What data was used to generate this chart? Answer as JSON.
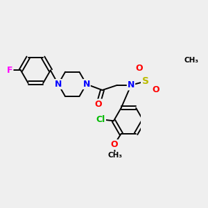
{
  "background_color": "#efefef",
  "bond_color": "#000000",
  "bond_width": 1.4,
  "dbo": 0.035,
  "atoms": {
    "F": {
      "color": "#ff00ff"
    },
    "N": {
      "color": "#0000ff"
    },
    "O": {
      "color": "#ff0000"
    },
    "S": {
      "color": "#bbbb00"
    },
    "Cl": {
      "color": "#00bb00"
    }
  },
  "ring_r": 0.3,
  "figsize": [
    3.0,
    3.0
  ],
  "dpi": 100,
  "xlim": [
    0.2,
    3.0
  ],
  "ylim": [
    0.3,
    3.1
  ]
}
